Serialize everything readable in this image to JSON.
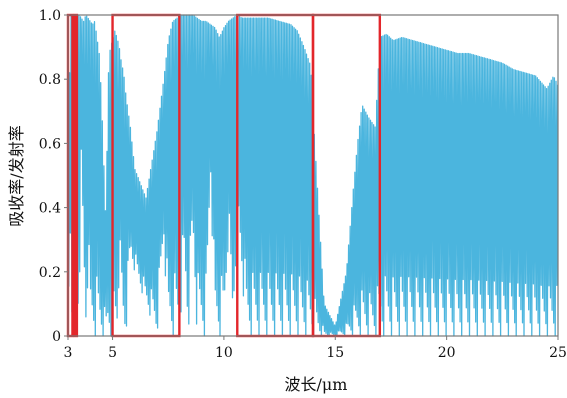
{
  "chart_data": {
    "type": "line",
    "title": "",
    "xlabel": "波长/μm",
    "ylabel": "吸收率/发射率",
    "xlim": [
      3,
      25
    ],
    "ylim": [
      0,
      1.0
    ],
    "x_ticks": [
      3,
      5,
      10,
      15,
      20,
      25
    ],
    "x_tick_labels": [
      "3",
      "5",
      "10",
      "15",
      "20",
      "25"
    ],
    "y_ticks": [
      0,
      0.2,
      0.4,
      0.6,
      0.8,
      1.0
    ],
    "y_tick_labels": [
      "0",
      "0.2",
      "0.4",
      "0.6",
      "0.8",
      "1.0"
    ],
    "grid": false,
    "colors": {
      "series": "#4bb5de",
      "highlight": "#e3262b",
      "axes": "#777777"
    },
    "series": [
      {
        "x": [
          3.0,
          3.1,
          3.2,
          3.3,
          3.4,
          3.5,
          3.6,
          3.7,
          3.8,
          3.9,
          4.0,
          4.1,
          4.2,
          4.3,
          4.4,
          4.5,
          4.6,
          4.7,
          4.8,
          4.9,
          5.0,
          5.1,
          5.2,
          5.3,
          5.4,
          5.5,
          5.6,
          5.8,
          6.0,
          6.5,
          7.0,
          7.3,
          7.5,
          7.7,
          7.9,
          8.0,
          8.2,
          8.4,
          8.6,
          8.8,
          9.0,
          9.2,
          9.4,
          9.6,
          9.8,
          10.0,
          10.2,
          10.4,
          10.6,
          10.8,
          11.0,
          11.5,
          12.0,
          12.5,
          13.0,
          13.3,
          13.6,
          13.9,
          14.0,
          14.5,
          15.0,
          15.5,
          15.8,
          16.0,
          16.2,
          16.5,
          16.8,
          17.0,
          17.3,
          17.6,
          18.0,
          18.5,
          19.0,
          19.5,
          20.0,
          20.5,
          21.0,
          21.5,
          22.0,
          22.5,
          23.0,
          23.5,
          24.0,
          24.5,
          24.8,
          25.0
        ],
        "y_upper": [
          0.4,
          1.0,
          1.0,
          0.97,
          1.0,
          1.0,
          0.99,
          0.98,
          1.0,
          0.99,
          0.98,
          0.97,
          0.98,
          0.93,
          0.88,
          0.75,
          0.55,
          0.35,
          0.8,
          0.9,
          0.92,
          0.95,
          0.93,
          0.9,
          0.85,
          0.82,
          0.75,
          0.65,
          0.52,
          0.43,
          0.64,
          0.8,
          0.92,
          0.98,
          0.99,
          1.0,
          1.0,
          1.0,
          1.0,
          0.99,
          0.98,
          0.98,
          0.97,
          0.96,
          0.93,
          0.96,
          0.98,
          0.99,
          1.0,
          0.99,
          0.99,
          0.99,
          0.99,
          0.98,
          0.97,
          0.95,
          0.9,
          0.84,
          0.7,
          0.1,
          0.03,
          0.2,
          0.45,
          0.6,
          0.72,
          0.68,
          0.65,
          0.93,
          0.94,
          0.92,
          0.93,
          0.92,
          0.91,
          0.9,
          0.89,
          0.88,
          0.88,
          0.87,
          0.86,
          0.85,
          0.83,
          0.82,
          0.81,
          0.77,
          0.81,
          0.78
        ],
        "y_lower": [
          0.0,
          0.3,
          0.0,
          0.0,
          0.0,
          0.1,
          0.5,
          0.2,
          0.0,
          0.2,
          0.0,
          0.0,
          0.0,
          0.0,
          0.0,
          0.0,
          0.0,
          0.0,
          0.0,
          0.0,
          0.0,
          0.0,
          0.0,
          0.2,
          0.1,
          0.0,
          0.0,
          0.25,
          0.2,
          0.1,
          0.0,
          0.3,
          0.0,
          0.0,
          0.0,
          0.0,
          0.2,
          0.0,
          0.3,
          0.0,
          0.0,
          0.0,
          0.5,
          0.0,
          0.0,
          0.0,
          0.3,
          0.0,
          0.35,
          0.2,
          0.0,
          0.0,
          0.0,
          0.0,
          0.0,
          0.0,
          0.0,
          0.0,
          0.0,
          0.0,
          0.0,
          0.0,
          0.0,
          0.0,
          0.0,
          0.0,
          0.0,
          0.0,
          0.0,
          0.0,
          0.0,
          0.0,
          0.0,
          0.0,
          0.0,
          0.0,
          0.0,
          0.0,
          0.0,
          0.0,
          0.0,
          0.0,
          0.0,
          0.0,
          0.0,
          0.0
        ]
      }
    ],
    "highlight_windows": [
      {
        "x_start": 3.0,
        "x_end": 3.2
      },
      {
        "x_start": 3.3,
        "x_end": 3.4
      },
      {
        "x_start": 5.0,
        "x_end": 8.0
      },
      {
        "x_start": 10.6,
        "x_end": 14.0
      },
      {
        "x_start": 14.0,
        "x_end": 17.0
      }
    ]
  }
}
